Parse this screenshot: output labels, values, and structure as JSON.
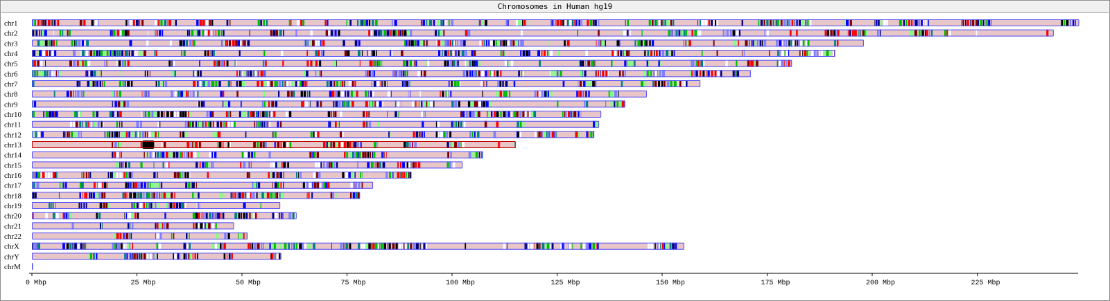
{
  "window": {
    "title": "Chromosomes in Human hg19"
  },
  "chart_data": {
    "type": "bar",
    "title": "Chromosomes in Human hg19",
    "xlabel": "",
    "ylabel": "",
    "x_unit": "Mbp",
    "xlim": [
      0,
      250
    ],
    "x_ticks": [
      0,
      25,
      50,
      75,
      100,
      125,
      150,
      175,
      200,
      225
    ],
    "x_tick_labels": [
      "0 Mbp",
      "25 Mbp",
      "50 Mbp",
      "75 Mbp",
      "100 Mbp",
      "125 Mbp",
      "150 Mbp",
      "175 Mbp",
      "200 Mbp",
      "225 Mbp"
    ],
    "categories": [
      "chr1",
      "chr2",
      "chr3",
      "chr4",
      "chr5",
      "chr6",
      "chr7",
      "chr8",
      "chr9",
      "chr10",
      "chr11",
      "chr12",
      "chr13",
      "chr14",
      "chr15",
      "chr16",
      "chr17",
      "chr18",
      "chr19",
      "chr20",
      "chr21",
      "chr22",
      "chrX",
      "chrY",
      "chrM"
    ],
    "values": [
      249.25,
      243.2,
      198.0,
      191.15,
      180.9,
      171.1,
      159.1,
      146.35,
      141.2,
      135.5,
      135.0,
      133.85,
      115.15,
      107.35,
      102.5,
      90.35,
      81.2,
      78.1,
      59.1,
      63.0,
      48.1,
      51.3,
      155.25,
      59.35,
      0.02
    ],
    "leading_gaps_mbp": {
      "chr13": 19.0,
      "chr14": 19.0,
      "chr15": 20.0,
      "chr21": 9.5,
      "chr22": 16.5,
      "chrY": 13.5
    },
    "grid": false,
    "colors": {
      "chromosome_fill": "#e8c6c8",
      "chromosome_outline": "#4a4aff",
      "band_palette": [
        "#000000",
        "#0000ff",
        "#00c000",
        "#ff0000",
        "#80ff80",
        "#8080ff",
        "#800000",
        "#008080",
        "#ffffff",
        "#000080"
      ],
      "chr13_outline": "#c00000"
    }
  }
}
